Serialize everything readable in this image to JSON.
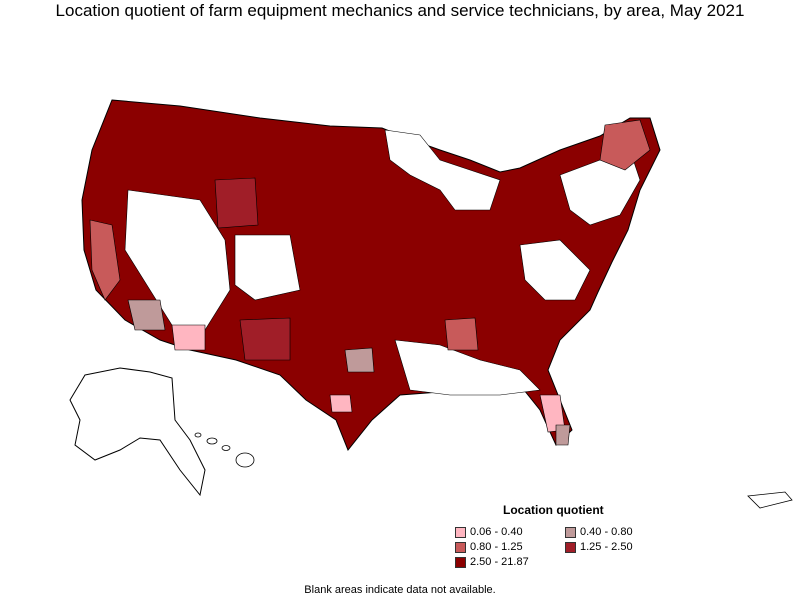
{
  "title": "Location quotient of farm equipment mechanics and service technicians, by area, May 2021",
  "legend": {
    "title": "Location quotient",
    "items": [
      {
        "label": "0.06 - 0.40",
        "color": "#ffb6c1"
      },
      {
        "label": "0.40 - 0.80",
        "color": "#bf9a9a"
      },
      {
        "label": "0.80 - 1.25",
        "color": "#c85a5a"
      },
      {
        "label": "1.25 - 2.50",
        "color": "#a01e28"
      },
      {
        "label": "2.50 - 21.87",
        "color": "#8b0000"
      }
    ]
  },
  "note": "Blank areas indicate data not available.",
  "map_colors": {
    "outline": "#000000",
    "blank": "#ffffff"
  }
}
